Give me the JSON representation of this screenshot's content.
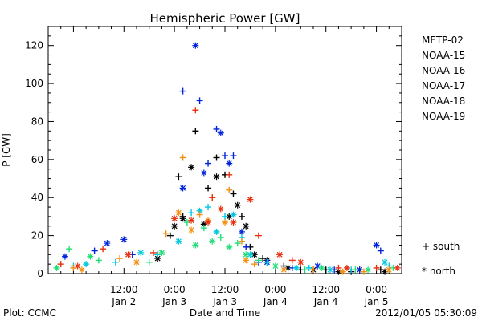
{
  "chart_data": {
    "type": "scatter",
    "title": "Hemispheric Power [GW]",
    "xlabel": "Date and Time",
    "ylabel": "P [GW]",
    "ylim": [
      0,
      130
    ],
    "yticks": [
      0,
      20,
      40,
      60,
      80,
      100,
      120
    ],
    "xlim": [
      "2012-01-01T18:00",
      "2012-01-05T06:00"
    ],
    "xticks": [
      {
        "t": "2012-01-02T12:00",
        "line1": "12:00",
        "line2": "Jan 2"
      },
      {
        "t": "2012-01-03T00:00",
        "line1": "0:00",
        "line2": "Jan 3"
      },
      {
        "t": "2012-01-03T12:00",
        "line1": "12:00",
        "line2": "Jan 3"
      },
      {
        "t": "2012-01-04T00:00",
        "line1": "0:00",
        "line2": "Jan 4"
      },
      {
        "t": "2012-01-04T12:00",
        "line1": "12:00",
        "line2": "Jan 4"
      },
      {
        "t": "2012-01-05T00:00",
        "line1": "0:00",
        "line2": "Jan 5"
      }
    ],
    "legend_position": "right",
    "symbols": {
      "south": "+",
      "north": "*"
    },
    "series": [
      {
        "name": "METP-02",
        "color": "#000000",
        "south": [
          [
            "2012-01-02T23:00",
            20
          ],
          [
            "2012-01-03T01:00",
            51
          ],
          [
            "2012-01-03T02:00",
            30
          ],
          [
            "2012-01-03T05:00",
            75
          ],
          [
            "2012-01-03T08:00",
            45
          ],
          [
            "2012-01-03T10:00",
            61
          ],
          [
            "2012-01-03T12:00",
            52
          ],
          [
            "2012-01-03T14:00",
            42
          ],
          [
            "2012-01-03T16:00",
            30
          ],
          [
            "2012-01-03T18:00",
            14
          ],
          [
            "2012-01-03T21:00",
            8
          ],
          [
            "2012-01-04T02:00",
            4
          ],
          [
            "2012-01-04T06:00",
            2
          ],
          [
            "2012-01-04T12:00",
            2
          ],
          [
            "2012-01-04T18:00",
            1
          ],
          [
            "2012-01-05T01:00",
            2
          ]
        ],
        "north": [
          [
            "2012-01-02T20:00",
            8
          ],
          [
            "2012-01-03T00:00",
            25
          ],
          [
            "2012-01-03T02:00",
            29
          ],
          [
            "2012-01-03T04:00",
            56
          ],
          [
            "2012-01-03T07:00",
            26
          ],
          [
            "2012-01-03T10:00",
            51
          ],
          [
            "2012-01-03T13:00",
            30
          ],
          [
            "2012-01-03T15:00",
            36
          ],
          [
            "2012-01-03T17:00",
            25
          ],
          [
            "2012-01-03T19:00",
            10
          ],
          [
            "2012-01-03T22:00",
            7
          ],
          [
            "2012-01-04T03:00",
            3
          ],
          [
            "2012-01-04T09:00",
            2
          ],
          [
            "2012-01-04T15:00",
            1
          ],
          [
            "2012-01-04T20:00",
            2
          ],
          [
            "2012-01-05T02:00",
            1
          ]
        ]
      },
      {
        "name": "NOAA-15",
        "color": "#0022dd",
        "south": [
          [
            "2012-01-02T05:00",
            12
          ],
          [
            "2012-01-02T14:00",
            10
          ],
          [
            "2012-01-03T02:00",
            96
          ],
          [
            "2012-01-03T06:00",
            91
          ],
          [
            "2012-01-03T08:00",
            58
          ],
          [
            "2012-01-03T10:00",
            76
          ],
          [
            "2012-01-03T12:00",
            62
          ],
          [
            "2012-01-03T14:00",
            62
          ],
          [
            "2012-01-03T17:00",
            14
          ],
          [
            "2012-01-03T20:00",
            6
          ],
          [
            "2012-01-04T04:00",
            3
          ],
          [
            "2012-01-04T14:00",
            2
          ],
          [
            "2012-01-05T01:00",
            12
          ]
        ],
        "north": [
          [
            "2012-01-01T22:00",
            9
          ],
          [
            "2012-01-02T08:00",
            16
          ],
          [
            "2012-01-02T12:00",
            18
          ],
          [
            "2012-01-03T02:00",
            45
          ],
          [
            "2012-01-03T05:00",
            120
          ],
          [
            "2012-01-03T07:00",
            53
          ],
          [
            "2012-01-03T11:00",
            74
          ],
          [
            "2012-01-03T13:00",
            58
          ],
          [
            "2012-01-03T16:00",
            22
          ],
          [
            "2012-01-03T22:00",
            6
          ],
          [
            "2012-01-04T10:00",
            4
          ],
          [
            "2012-01-04T20:00",
            2
          ],
          [
            "2012-01-05T00:00",
            15
          ]
        ]
      },
      {
        "name": "NOAA-16",
        "color": "#00c8e0",
        "south": [
          [
            "2012-01-02T00:00",
            4
          ],
          [
            "2012-01-02T10:00",
            6
          ],
          [
            "2012-01-02T20:00",
            10
          ],
          [
            "2012-01-03T04:00",
            32
          ],
          [
            "2012-01-03T08:00",
            35
          ],
          [
            "2012-01-03T12:00",
            30
          ],
          [
            "2012-01-03T16:00",
            19
          ],
          [
            "2012-01-03T22:00",
            6
          ],
          [
            "2012-01-04T08:00",
            3
          ],
          [
            "2012-01-04T18:00",
            2
          ],
          [
            "2012-01-05T03:00",
            4
          ]
        ],
        "north": [
          [
            "2012-01-02T03:00",
            5
          ],
          [
            "2012-01-02T16:00",
            11
          ],
          [
            "2012-01-03T01:00",
            17
          ],
          [
            "2012-01-03T06:00",
            33
          ],
          [
            "2012-01-03T10:00",
            22
          ],
          [
            "2012-01-03T14:00",
            31
          ],
          [
            "2012-01-03T18:00",
            10
          ],
          [
            "2012-01-04T05:00",
            3
          ],
          [
            "2012-01-04T13:00",
            2
          ],
          [
            "2012-01-05T02:00",
            6
          ]
        ]
      },
      {
        "name": "NOAA-17",
        "color": "#22dd77",
        "south": [
          [
            "2012-01-01T23:00",
            13
          ],
          [
            "2012-01-02T06:00",
            7
          ],
          [
            "2012-01-02T18:00",
            6
          ],
          [
            "2012-01-03T03:00",
            27
          ],
          [
            "2012-01-03T07:00",
            24
          ],
          [
            "2012-01-03T11:00",
            19
          ],
          [
            "2012-01-03T15:00",
            16
          ],
          [
            "2012-01-03T20:00",
            7
          ],
          [
            "2012-01-04T07:00",
            2
          ],
          [
            "2012-01-04T19:00",
            2
          ],
          [
            "2012-01-05T04:00",
            3
          ]
        ],
        "north": [
          [
            "2012-01-01T20:00",
            3
          ],
          [
            "2012-01-02T04:00",
            9
          ],
          [
            "2012-01-02T21:00",
            11
          ],
          [
            "2012-01-03T05:00",
            15
          ],
          [
            "2012-01-03T09:00",
            17
          ],
          [
            "2012-01-03T13:00",
            14
          ],
          [
            "2012-01-03T17:00",
            10
          ],
          [
            "2012-01-04T00:00",
            4
          ],
          [
            "2012-01-04T11:00",
            3
          ],
          [
            "2012-01-04T22:00",
            2
          ]
        ]
      },
      {
        "name": "NOAA-18",
        "color": "#f39010",
        "south": [
          [
            "2012-01-02T00:00",
            3
          ],
          [
            "2012-01-02T11:00",
            8
          ],
          [
            "2012-01-02T22:00",
            21
          ],
          [
            "2012-01-03T02:00",
            61
          ],
          [
            "2012-01-03T06:00",
            31
          ],
          [
            "2012-01-03T09:00",
            40
          ],
          [
            "2012-01-03T13:00",
            44
          ],
          [
            "2012-01-03T16:00",
            17
          ],
          [
            "2012-01-03T19:00",
            5
          ],
          [
            "2012-01-04T09:00",
            2
          ],
          [
            "2012-01-04T21:00",
            1
          ]
        ],
        "north": [
          [
            "2012-01-02T02:00",
            2
          ],
          [
            "2012-01-02T15:00",
            6
          ],
          [
            "2012-01-03T01:00",
            32
          ],
          [
            "2012-01-03T04:00",
            23
          ],
          [
            "2012-01-03T08:00",
            28
          ],
          [
            "2012-01-03T12:00",
            27
          ],
          [
            "2012-01-03T17:00",
            7
          ],
          [
            "2012-01-04T02:00",
            2
          ],
          [
            "2012-01-04T16:00",
            1
          ],
          [
            "2012-01-05T03:00",
            2
          ]
        ]
      },
      {
        "name": "NOAA-19",
        "color": "#e83010",
        "south": [
          [
            "2012-01-01T21:00",
            5
          ],
          [
            "2012-01-02T07:00",
            13
          ],
          [
            "2012-01-02T19:00",
            11
          ],
          [
            "2012-01-03T05:00",
            86
          ],
          [
            "2012-01-03T09:00",
            40
          ],
          [
            "2012-01-03T13:00",
            52
          ],
          [
            "2012-01-03T20:00",
            20
          ],
          [
            "2012-01-04T04:00",
            7
          ],
          [
            "2012-01-04T15:00",
            3
          ],
          [
            "2012-01-05T00:00",
            3
          ]
        ],
        "north": [
          [
            "2012-01-02T01:00",
            4
          ],
          [
            "2012-01-02T13:00",
            10
          ],
          [
            "2012-01-03T00:00",
            29
          ],
          [
            "2012-01-03T04:00",
            28
          ],
          [
            "2012-01-03T08:00",
            27
          ],
          [
            "2012-01-03T11:00",
            34
          ],
          [
            "2012-01-03T14:00",
            27
          ],
          [
            "2012-01-03T18:00",
            39
          ],
          [
            "2012-01-04T01:00",
            10
          ],
          [
            "2012-01-04T06:00",
            6
          ],
          [
            "2012-01-04T17:00",
            3
          ],
          [
            "2012-01-05T05:00",
            3
          ]
        ]
      }
    ]
  },
  "legend_symbols": {
    "south": "+ south",
    "north": "* north"
  },
  "footer": {
    "left": "Plot: CCMC",
    "center": "Date and Time",
    "right": "2012/01/05 05:30:09"
  }
}
